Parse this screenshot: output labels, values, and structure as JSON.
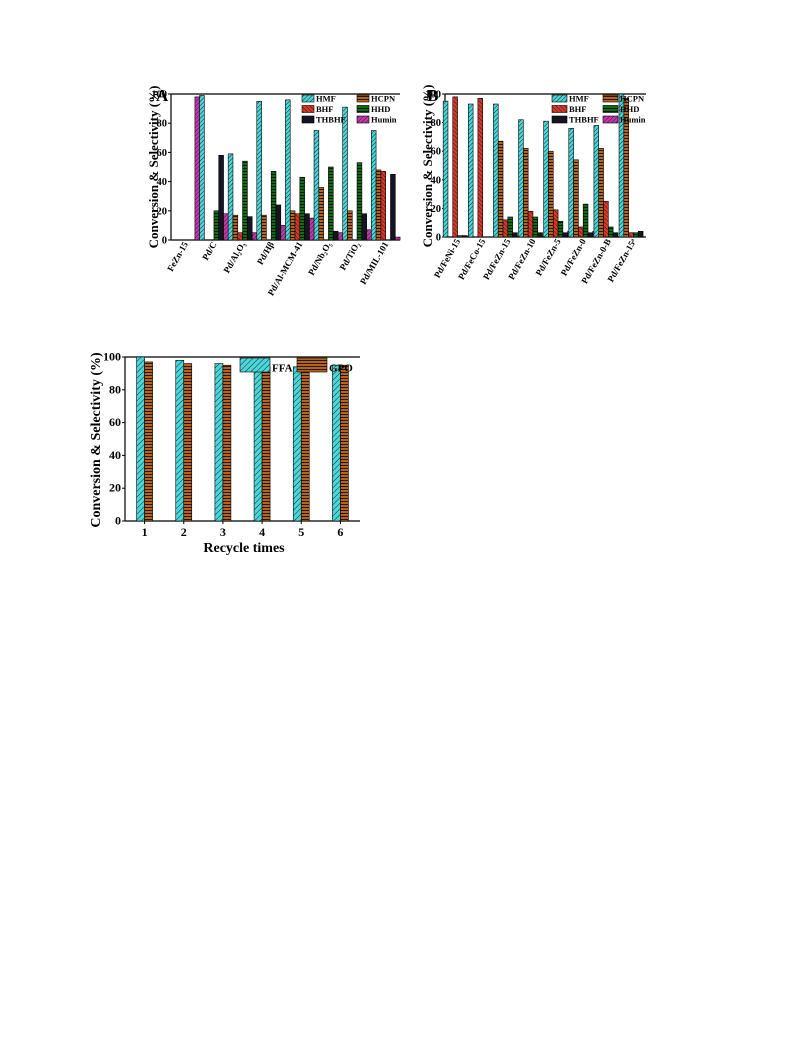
{
  "colors": {
    "HMF": "#4dd6d9",
    "HCPN": "#b5651d",
    "BHF": "#d33a2c",
    "HHD": "#0f6b14",
    "THBHF": "#141423",
    "Humin": "#c23aa8",
    "FFA": "#4dd6d9",
    "GPO": "#b5651d"
  },
  "chart_data": [
    {
      "panel": "A",
      "type": "bar",
      "ylabel": "Conversion & Selectivity (%)",
      "ylim": [
        0,
        100
      ],
      "yticks": [
        0,
        20,
        40,
        60,
        80,
        100
      ],
      "categories": [
        "FeZn-15",
        "Pd/C",
        "Pd/Al₂O₃",
        "Pd/Hβ",
        "Pd/Al-MCM-41",
        "Pd/Nb₂O₅",
        "Pd/TiO₂",
        "Pd/MIL-101"
      ],
      "legend_position": "top-right",
      "series": [
        {
          "name": "HMF",
          "values": [
            0,
            99,
            59,
            95,
            96,
            75,
            91,
            75
          ]
        },
        {
          "name": "HCPN",
          "values": [
            0,
            0,
            17,
            17,
            20,
            36,
            20,
            48
          ]
        },
        {
          "name": "BHF",
          "values": [
            0,
            0,
            5,
            0,
            18,
            0,
            0,
            47
          ]
        },
        {
          "name": "HHD",
          "values": [
            0,
            20,
            54,
            47,
            43,
            50,
            53,
            0
          ]
        },
        {
          "name": "THBHF",
          "values": [
            0,
            58,
            16,
            24,
            18,
            6,
            18,
            45
          ]
        },
        {
          "name": "Humin",
          "values": [
            98,
            18,
            5,
            10,
            15,
            5,
            7,
            2
          ]
        }
      ]
    },
    {
      "panel": "B",
      "type": "bar",
      "ylabel": "Conversion & Selectivity (%)",
      "ylim": [
        0,
        100
      ],
      "yticks": [
        0,
        20,
        40,
        60,
        80,
        100
      ],
      "categories": [
        "Pd/FeNi-15",
        "Pd/FeCo-15",
        "Pd/FeZn-15",
        "Pd/FeZn-10",
        "Pd/FeZn-5",
        "Pd/FeZn-0",
        "Pd/FeZn-0-B",
        "Pd/FeZn-15ᵃ"
      ],
      "legend_position": "top-right",
      "series": [
        {
          "name": "HMF",
          "values": [
            95,
            93,
            93,
            82,
            81,
            76,
            78,
            100
          ]
        },
        {
          "name": "HCPN",
          "values": [
            0,
            0,
            67,
            62,
            60,
            54,
            62,
            97
          ]
        },
        {
          "name": "BHF",
          "values": [
            98,
            97,
            12,
            18,
            19,
            7,
            25,
            3
          ]
        },
        {
          "name": "HHD",
          "values": [
            1,
            0,
            14,
            14,
            11,
            23,
            7,
            3
          ]
        },
        {
          "name": "THBHF",
          "values": [
            1,
            0,
            3,
            3,
            3,
            3,
            3,
            4
          ]
        },
        {
          "name": "Humin",
          "values": [
            0,
            0,
            0,
            0,
            4,
            4,
            0,
            0
          ]
        }
      ]
    },
    {
      "panel": "",
      "type": "bar",
      "xlabel": "Recycle times",
      "ylabel": "Conversion & Selectivity (%)",
      "ylim": [
        0,
        100
      ],
      "yticks": [
        0,
        20,
        40,
        60,
        80,
        100
      ],
      "categories": [
        "1",
        "2",
        "3",
        "4",
        "5",
        "6"
      ],
      "legend_position": "top-right",
      "series": [
        {
          "name": "FFA",
          "values": [
            100,
            98,
            96,
            94,
            94,
            95
          ]
        },
        {
          "name": "GPO",
          "values": [
            97,
            96,
            95,
            94,
            95,
            95
          ]
        }
      ]
    }
  ]
}
